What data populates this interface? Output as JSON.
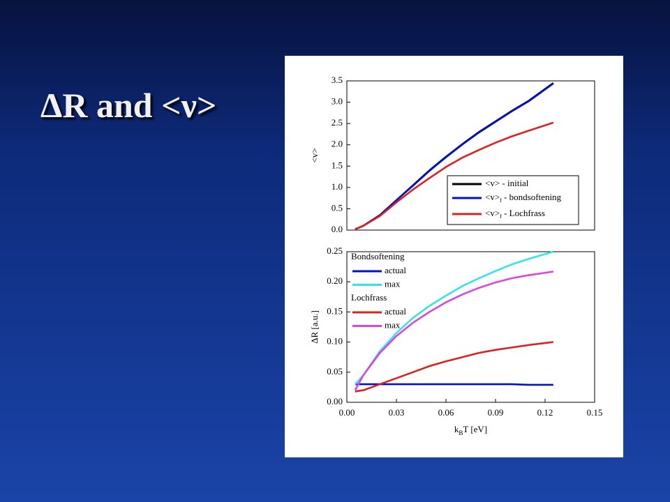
{
  "slide_title": "ΔR and <ν>",
  "chart_data": [
    {
      "type": "line",
      "ylabel": "<v>",
      "x": [
        0.005,
        0.01,
        0.02,
        0.03,
        0.04,
        0.05,
        0.06,
        0.07,
        0.08,
        0.09,
        0.1,
        0.11,
        0.125
      ],
      "xlim": [
        0,
        0.15
      ],
      "ylim": [
        0,
        3.5
      ],
      "yticks": [
        {
          "value": 0,
          "label": "0.0"
        },
        0.5,
        {
          "value": 1,
          "label": "1.0"
        },
        1.5,
        {
          "value": 2,
          "label": "2.0"
        },
        2.5,
        {
          "value": 3,
          "label": "3.0"
        },
        3.5
      ],
      "legend": "lower right",
      "series": [
        {
          "name": [
            "<v>",
            "",
            " - initial"
          ],
          "color": "#000000",
          "values": [
            0.02,
            0.1,
            0.35,
            0.7,
            1.05,
            1.4,
            1.72,
            2.02,
            2.3,
            2.55,
            2.8,
            3.03,
            3.45
          ]
        },
        {
          "name": [
            "<v>",
            "f",
            " - bondsoftening"
          ],
          "color": "#0010cc",
          "values": [
            0.02,
            0.1,
            0.35,
            0.7,
            1.04,
            1.39,
            1.71,
            2.01,
            2.29,
            2.54,
            2.79,
            3.02,
            3.44
          ]
        },
        {
          "name": [
            "<v>",
            "f",
            " - Lochfrass"
          ],
          "color": "#dd2020",
          "values": [
            0.02,
            0.1,
            0.33,
            0.65,
            0.95,
            1.22,
            1.48,
            1.7,
            1.88,
            2.05,
            2.2,
            2.33,
            2.52
          ]
        }
      ]
    },
    {
      "type": "line",
      "ylabel": "ΔR [a.u.]",
      "xlabel": [
        "k",
        "B",
        "T [eV]"
      ],
      "x": [
        0.005,
        0.01,
        0.02,
        0.03,
        0.04,
        0.05,
        0.06,
        0.07,
        0.08,
        0.09,
        0.1,
        0.11,
        0.125
      ],
      "xlim": [
        0,
        0.15
      ],
      "ylim": [
        0,
        0.25
      ],
      "xticks": [
        {
          "value": 0,
          "label": "0.00"
        },
        {
          "value": 0.03,
          "label": "0.03"
        },
        {
          "value": 0.06,
          "label": "0.06"
        },
        {
          "value": 0.09,
          "label": "0.09"
        },
        {
          "value": 0.12,
          "label": "0.12"
        },
        {
          "value": 0.15,
          "label": "0.15"
        }
      ],
      "yticks": [
        {
          "value": 0,
          "label": "0.00"
        },
        {
          "value": 0.05,
          "label": "0.05"
        },
        {
          "value": 0.1,
          "label": "0.10"
        },
        {
          "value": 0.15,
          "label": "0.15"
        },
        {
          "value": 0.2,
          "label": "0.20"
        },
        {
          "value": 0.25,
          "label": "0.25"
        }
      ],
      "legend": "upper left",
      "series_groups": [
        {
          "name": "Bondsoftening",
          "series": [
            {
              "name": "actual",
              "color": "#0010cc",
              "values": [
                0.03,
                0.03,
                0.03,
                0.03,
                0.03,
                0.03,
                0.03,
                0.03,
                0.03,
                0.03,
                0.03,
                0.029,
                0.029
              ]
            },
            {
              "name": "max",
              "color": "#33e5e5",
              "values": [
                0.03,
                0.045,
                0.085,
                0.115,
                0.14,
                0.16,
                0.177,
                0.193,
                0.206,
                0.218,
                0.229,
                0.238,
                0.25
              ]
            }
          ]
        },
        {
          "name": "Lochfrass",
          "series": [
            {
              "name": "actual",
              "color": "#dd2020",
              "values": [
                0.018,
                0.02,
                0.03,
                0.04,
                0.05,
                0.06,
                0.068,
                0.075,
                0.082,
                0.087,
                0.091,
                0.095,
                0.1
              ]
            },
            {
              "name": "max",
              "color": "#dd44dd",
              "values": [
                0.02,
                0.045,
                0.082,
                0.11,
                0.132,
                0.15,
                0.166,
                0.179,
                0.19,
                0.199,
                0.206,
                0.211,
                0.217
              ]
            }
          ]
        }
      ]
    }
  ]
}
